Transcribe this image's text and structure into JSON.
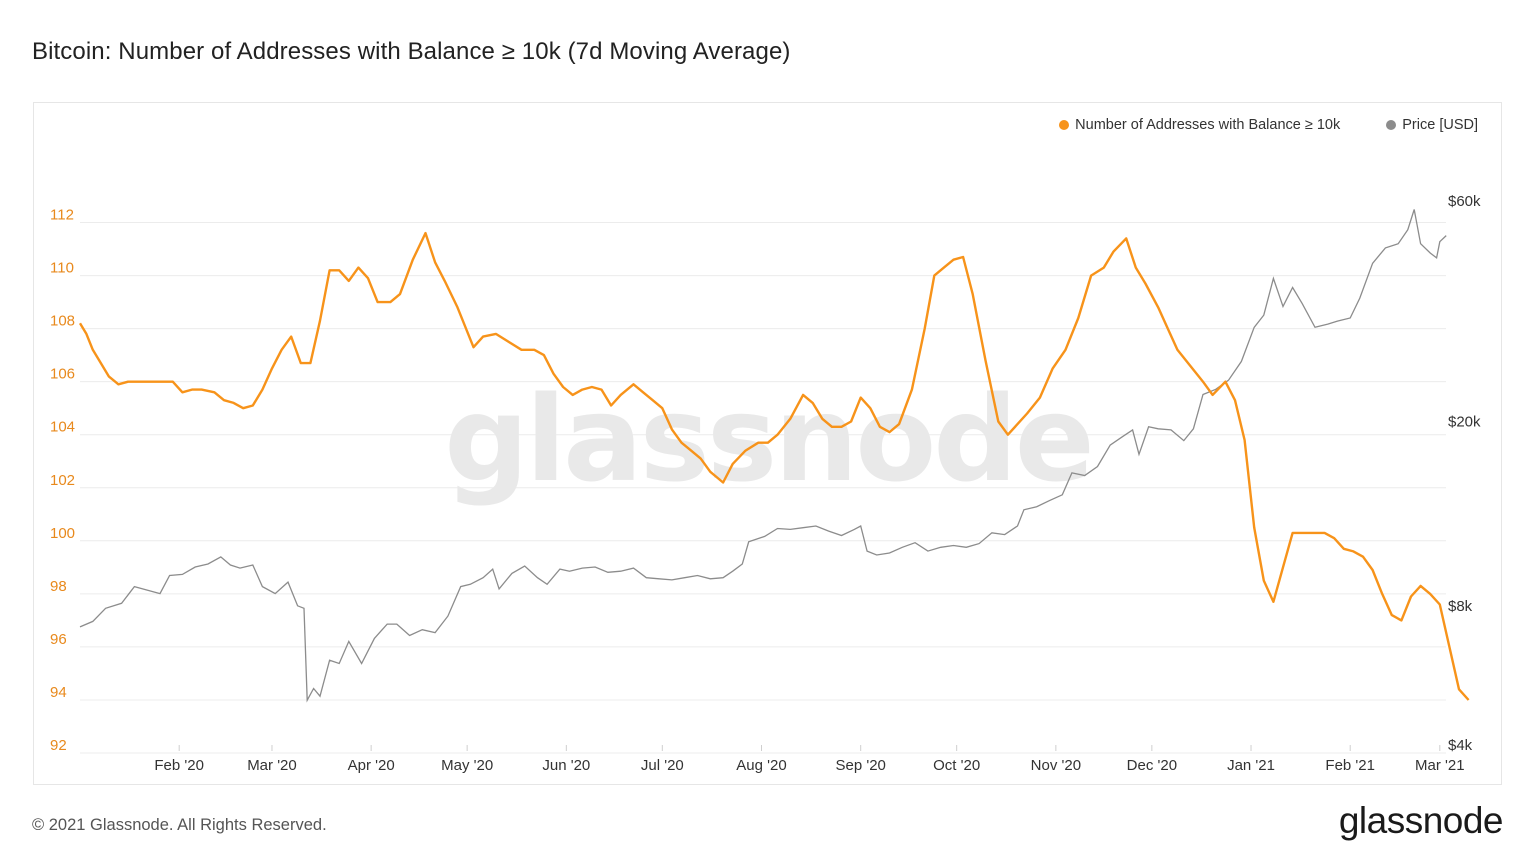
{
  "title": "Bitcoin: Number of Addresses with Balance ≥ 10k (7d Moving Average)",
  "watermark": "glassnode",
  "footer": {
    "copyright": "© 2021 Glassnode. All Rights Reserved.",
    "logo_text": "glassnode"
  },
  "colors": {
    "addresses": "#f7931a",
    "price": "#8c8c8c",
    "left_tick": "#e8891c",
    "grid": "#ececec",
    "watermark": "#e9e9e9"
  },
  "legend": {
    "addresses_label": "Number of Addresses with Balance ≥ 10k",
    "price_label": "Price [USD]"
  },
  "chart_data": {
    "type": "line",
    "title": "Bitcoin: Number of Addresses with Balance ≥ 10k (7d Moving Average)",
    "x_labels": [
      "Feb '20",
      "Mar '20",
      "Apr '20",
      "May '20",
      "Jun '20",
      "Jul '20",
      "Aug '20",
      "Sep '20",
      "Oct '20",
      "Nov '20",
      "Dec '20",
      "Jan '21",
      "Feb '21",
      "Mar '21"
    ],
    "x_domain": [
      "2020-01-01",
      "2021-03-02"
    ],
    "left_axis": {
      "label": "Number of Addresses with Balance ≥ 10k",
      "ylim": [
        92,
        113
      ],
      "ticks": [
        "92",
        "94",
        "96",
        "98",
        "100",
        "102",
        "104",
        "106",
        "108",
        "110",
        "112"
      ],
      "tick_values": [
        92,
        94,
        96,
        98,
        100,
        102,
        104,
        106,
        108,
        110,
        112
      ]
    },
    "right_axis": {
      "label": "Price [USD]",
      "scale": "log",
      "ylim": [
        4000,
        64000
      ],
      "ticks": [
        "$4k",
        "$8k",
        "$20k",
        "$60k"
      ],
      "tick_values": [
        4000,
        8000,
        20000,
        60000
      ]
    },
    "series": [
      {
        "name": "Number of Addresses with Balance ≥ 10k",
        "axis": "left",
        "points": [
          [
            "2020-01-01",
            108.2
          ],
          [
            "2020-01-03",
            107.8
          ],
          [
            "2020-01-05",
            107.2
          ],
          [
            "2020-01-07",
            106.8
          ],
          [
            "2020-01-10",
            106.2
          ],
          [
            "2020-01-13",
            105.9
          ],
          [
            "2020-01-16",
            106.0
          ],
          [
            "2020-01-20",
            106.0
          ],
          [
            "2020-01-25",
            106.0
          ],
          [
            "2020-01-30",
            106.0
          ],
          [
            "2020-02-02",
            105.6
          ],
          [
            "2020-02-05",
            105.7
          ],
          [
            "2020-02-08",
            105.7
          ],
          [
            "2020-02-12",
            105.6
          ],
          [
            "2020-02-15",
            105.3
          ],
          [
            "2020-02-18",
            105.2
          ],
          [
            "2020-02-21",
            105.0
          ],
          [
            "2020-02-24",
            105.1
          ],
          [
            "2020-02-27",
            105.7
          ],
          [
            "2020-03-01",
            106.5
          ],
          [
            "2020-03-04",
            107.2
          ],
          [
            "2020-03-07",
            107.7
          ],
          [
            "2020-03-10",
            106.7
          ],
          [
            "2020-03-13",
            106.7
          ],
          [
            "2020-03-16",
            108.3
          ],
          [
            "2020-03-19",
            110.2
          ],
          [
            "2020-03-22",
            110.2
          ],
          [
            "2020-03-25",
            109.8
          ],
          [
            "2020-03-28",
            110.3
          ],
          [
            "2020-03-31",
            109.9
          ],
          [
            "2020-04-03",
            109.0
          ],
          [
            "2020-04-07",
            109.0
          ],
          [
            "2020-04-10",
            109.3
          ],
          [
            "2020-04-14",
            110.6
          ],
          [
            "2020-04-18",
            111.6
          ],
          [
            "2020-04-21",
            110.5
          ],
          [
            "2020-04-24",
            109.8
          ],
          [
            "2020-04-28",
            108.8
          ],
          [
            "2020-05-01",
            107.9
          ],
          [
            "2020-05-03",
            107.3
          ],
          [
            "2020-05-06",
            107.7
          ],
          [
            "2020-05-10",
            107.8
          ],
          [
            "2020-05-14",
            107.5
          ],
          [
            "2020-05-18",
            107.2
          ],
          [
            "2020-05-22",
            107.2
          ],
          [
            "2020-05-25",
            107.0
          ],
          [
            "2020-05-28",
            106.3
          ],
          [
            "2020-05-31",
            105.8
          ],
          [
            "2020-06-03",
            105.5
          ],
          [
            "2020-06-06",
            105.7
          ],
          [
            "2020-06-09",
            105.8
          ],
          [
            "2020-06-12",
            105.7
          ],
          [
            "2020-06-15",
            105.1
          ],
          [
            "2020-06-18",
            105.5
          ],
          [
            "2020-06-22",
            105.9
          ],
          [
            "2020-06-25",
            105.6
          ],
          [
            "2020-06-28",
            105.3
          ],
          [
            "2020-07-01",
            105.0
          ],
          [
            "2020-07-04",
            104.2
          ],
          [
            "2020-07-07",
            103.7
          ],
          [
            "2020-07-10",
            103.4
          ],
          [
            "2020-07-13",
            103.1
          ],
          [
            "2020-07-16",
            102.6
          ],
          [
            "2020-07-20",
            102.2
          ],
          [
            "2020-07-23",
            102.9
          ],
          [
            "2020-07-27",
            103.4
          ],
          [
            "2020-07-31",
            103.7
          ],
          [
            "2020-08-03",
            103.7
          ],
          [
            "2020-08-06",
            104.0
          ],
          [
            "2020-08-10",
            104.6
          ],
          [
            "2020-08-14",
            105.5
          ],
          [
            "2020-08-17",
            105.2
          ],
          [
            "2020-08-20",
            104.6
          ],
          [
            "2020-08-23",
            104.3
          ],
          [
            "2020-08-26",
            104.3
          ],
          [
            "2020-08-29",
            104.5
          ],
          [
            "2020-09-01",
            105.4
          ],
          [
            "2020-09-04",
            105.0
          ],
          [
            "2020-09-07",
            104.3
          ],
          [
            "2020-09-10",
            104.1
          ],
          [
            "2020-09-13",
            104.4
          ],
          [
            "2020-09-17",
            105.7
          ],
          [
            "2020-09-21",
            108.0
          ],
          [
            "2020-09-24",
            110.0
          ],
          [
            "2020-09-27",
            110.3
          ],
          [
            "2020-09-30",
            110.6
          ],
          [
            "2020-10-03",
            110.7
          ],
          [
            "2020-10-06",
            109.3
          ],
          [
            "2020-10-10",
            106.8
          ],
          [
            "2020-10-14",
            104.5
          ],
          [
            "2020-10-17",
            104.0
          ],
          [
            "2020-10-20",
            104.4
          ],
          [
            "2020-10-23",
            104.8
          ],
          [
            "2020-10-27",
            105.4
          ],
          [
            "2020-10-31",
            106.5
          ],
          [
            "2020-11-04",
            107.2
          ],
          [
            "2020-11-08",
            108.4
          ],
          [
            "2020-11-12",
            110.0
          ],
          [
            "2020-11-16",
            110.3
          ],
          [
            "2020-11-19",
            110.9
          ],
          [
            "2020-11-23",
            111.4
          ],
          [
            "2020-11-26",
            110.3
          ],
          [
            "2020-11-29",
            109.7
          ],
          [
            "2020-12-03",
            108.8
          ],
          [
            "2020-12-06",
            108.0
          ],
          [
            "2020-12-09",
            107.2
          ],
          [
            "2020-12-13",
            106.6
          ],
          [
            "2020-12-17",
            106.0
          ],
          [
            "2020-12-20",
            105.5
          ],
          [
            "2020-12-24",
            106.0
          ],
          [
            "2020-12-27",
            105.3
          ],
          [
            "2020-12-30",
            103.8
          ],
          [
            "2021-01-02",
            100.5
          ],
          [
            "2021-01-05",
            98.5
          ],
          [
            "2021-01-08",
            97.7
          ],
          [
            "2021-01-11",
            99.0
          ],
          [
            "2021-01-14",
            100.3
          ],
          [
            "2021-01-18",
            100.3
          ],
          [
            "2021-01-21",
            100.3
          ],
          [
            "2021-01-24",
            100.3
          ],
          [
            "2021-01-27",
            100.1
          ],
          [
            "2021-01-30",
            99.7
          ],
          [
            "2021-02-02",
            99.6
          ],
          [
            "2021-02-05",
            99.4
          ],
          [
            "2021-02-08",
            98.9
          ],
          [
            "2021-02-11",
            98.0
          ],
          [
            "2021-02-14",
            97.2
          ],
          [
            "2021-02-17",
            97.0
          ],
          [
            "2021-02-20",
            97.9
          ],
          [
            "2021-02-23",
            98.3
          ],
          [
            "2021-02-26",
            98.0
          ],
          [
            "2021-03-01",
            97.6
          ],
          [
            "2021-03-04",
            96.0
          ],
          [
            "2021-03-07",
            94.4
          ],
          [
            "2021-03-10",
            94.0
          ]
        ]
      },
      {
        "name": "Price [USD]",
        "axis": "right",
        "points": [
          [
            "2020-01-01",
            7200
          ],
          [
            "2020-01-05",
            7400
          ],
          [
            "2020-01-09",
            7900
          ],
          [
            "2020-01-14",
            8100
          ],
          [
            "2020-01-18",
            8800
          ],
          [
            "2020-01-22",
            8650
          ],
          [
            "2020-01-26",
            8500
          ],
          [
            "2020-01-29",
            9300
          ],
          [
            "2020-02-02",
            9350
          ],
          [
            "2020-02-06",
            9700
          ],
          [
            "2020-02-10",
            9850
          ],
          [
            "2020-02-14",
            10200
          ],
          [
            "2020-02-17",
            9800
          ],
          [
            "2020-02-20",
            9650
          ],
          [
            "2020-02-24",
            9800
          ],
          [
            "2020-02-27",
            8800
          ],
          [
            "2020-03-02",
            8500
          ],
          [
            "2020-03-06",
            9000
          ],
          [
            "2020-03-09",
            8000
          ],
          [
            "2020-03-11",
            7900
          ],
          [
            "2020-03-12",
            5000
          ],
          [
            "2020-03-14",
            5300
          ],
          [
            "2020-03-16",
            5100
          ],
          [
            "2020-03-19",
            6100
          ],
          [
            "2020-03-22",
            6000
          ],
          [
            "2020-03-25",
            6700
          ],
          [
            "2020-03-29",
            6000
          ],
          [
            "2020-04-02",
            6800
          ],
          [
            "2020-04-06",
            7300
          ],
          [
            "2020-04-09",
            7300
          ],
          [
            "2020-04-13",
            6900
          ],
          [
            "2020-04-17",
            7100
          ],
          [
            "2020-04-21",
            7000
          ],
          [
            "2020-04-25",
            7600
          ],
          [
            "2020-04-29",
            8800
          ],
          [
            "2020-05-02",
            8900
          ],
          [
            "2020-05-06",
            9200
          ],
          [
            "2020-05-09",
            9600
          ],
          [
            "2020-05-11",
            8700
          ],
          [
            "2020-05-15",
            9400
          ],
          [
            "2020-05-19",
            9750
          ],
          [
            "2020-05-23",
            9200
          ],
          [
            "2020-05-26",
            8900
          ],
          [
            "2020-05-30",
            9600
          ],
          [
            "2020-06-02",
            9500
          ],
          [
            "2020-06-06",
            9650
          ],
          [
            "2020-06-10",
            9700
          ],
          [
            "2020-06-14",
            9450
          ],
          [
            "2020-06-18",
            9500
          ],
          [
            "2020-06-22",
            9650
          ],
          [
            "2020-06-26",
            9200
          ],
          [
            "2020-06-30",
            9150
          ],
          [
            "2020-07-04",
            9100
          ],
          [
            "2020-07-08",
            9200
          ],
          [
            "2020-07-12",
            9300
          ],
          [
            "2020-07-16",
            9150
          ],
          [
            "2020-07-20",
            9200
          ],
          [
            "2020-07-23",
            9500
          ],
          [
            "2020-07-26",
            9850
          ],
          [
            "2020-07-28",
            11000
          ],
          [
            "2020-08-02",
            11300
          ],
          [
            "2020-08-06",
            11750
          ],
          [
            "2020-08-10",
            11700
          ],
          [
            "2020-08-14",
            11800
          ],
          [
            "2020-08-18",
            11900
          ],
          [
            "2020-08-22",
            11600
          ],
          [
            "2020-08-26",
            11350
          ],
          [
            "2020-08-30",
            11700
          ],
          [
            "2020-09-01",
            11900
          ],
          [
            "2020-09-03",
            10500
          ],
          [
            "2020-09-06",
            10300
          ],
          [
            "2020-09-10",
            10400
          ],
          [
            "2020-09-14",
            10700
          ],
          [
            "2020-09-18",
            10950
          ],
          [
            "2020-09-22",
            10500
          ],
          [
            "2020-09-26",
            10700
          ],
          [
            "2020-09-30",
            10800
          ],
          [
            "2020-10-04",
            10700
          ],
          [
            "2020-10-08",
            10900
          ],
          [
            "2020-10-12",
            11500
          ],
          [
            "2020-10-16",
            11400
          ],
          [
            "2020-10-20",
            11900
          ],
          [
            "2020-10-22",
            12900
          ],
          [
            "2020-10-26",
            13100
          ],
          [
            "2020-10-30",
            13500
          ],
          [
            "2020-11-03",
            13900
          ],
          [
            "2020-11-06",
            15500
          ],
          [
            "2020-11-10",
            15300
          ],
          [
            "2020-11-14",
            16000
          ],
          [
            "2020-11-18",
            17800
          ],
          [
            "2020-11-22",
            18600
          ],
          [
            "2020-11-25",
            19200
          ],
          [
            "2020-11-27",
            17000
          ],
          [
            "2020-11-30",
            19500
          ],
          [
            "2020-12-03",
            19300
          ],
          [
            "2020-12-07",
            19200
          ],
          [
            "2020-12-11",
            18200
          ],
          [
            "2020-12-14",
            19300
          ],
          [
            "2020-12-17",
            22900
          ],
          [
            "2020-12-21",
            23500
          ],
          [
            "2020-12-25",
            24600
          ],
          [
            "2020-12-29",
            27000
          ],
          [
            "2021-01-02",
            32000
          ],
          [
            "2021-01-05",
            34000
          ],
          [
            "2021-01-08",
            40800
          ],
          [
            "2021-01-11",
            35500
          ],
          [
            "2021-01-14",
            39000
          ],
          [
            "2021-01-17",
            36000
          ],
          [
            "2021-01-21",
            32000
          ],
          [
            "2021-01-25",
            32500
          ],
          [
            "2021-01-28",
            33000
          ],
          [
            "2021-02-01",
            33500
          ],
          [
            "2021-02-04",
            37000
          ],
          [
            "2021-02-08",
            44000
          ],
          [
            "2021-02-12",
            47500
          ],
          [
            "2021-02-16",
            48500
          ],
          [
            "2021-02-19",
            52000
          ],
          [
            "2021-02-21",
            57500
          ],
          [
            "2021-02-23",
            48500
          ],
          [
            "2021-02-26",
            46300
          ],
          [
            "2021-02-28",
            45200
          ],
          [
            "2021-03-01",
            49000
          ],
          [
            "2021-03-03",
            50500
          ]
        ]
      }
    ],
    "legend_position": "top-right",
    "grid": true
  }
}
